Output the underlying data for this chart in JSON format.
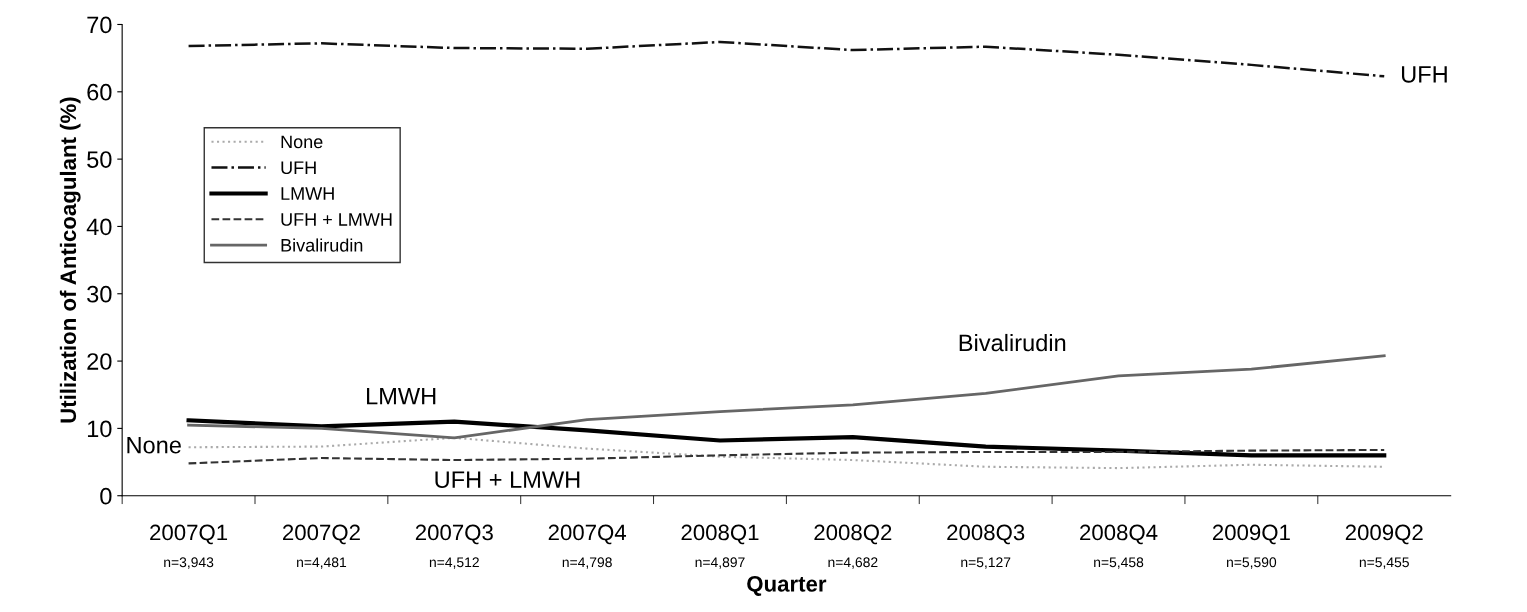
{
  "chart_data": {
    "type": "line",
    "xlabel": "Quarter",
    "ylabel": "Utilization of Anticoagulant (%)",
    "categories": [
      "2007Q1\nn=3,943",
      "2007Q2\nn=4,481",
      "2007Q3\nn=4,512",
      "2007Q4\nn=4,798",
      "2008Q1\nn=4,897",
      "2008Q2\nn=4,682",
      "2008Q3\nn=5,127",
      "2008Q4\nn=5,458",
      "2009Q1\nn=5,590",
      "2009Q2\nn=5,455"
    ],
    "series": [
      {
        "name": "None",
        "color": "#aaaaaa",
        "line_style": "dotted",
        "values": [
          7.2,
          7.3,
          8.6,
          7.0,
          5.8,
          5.3,
          4.3,
          4.1,
          4.6,
          4.3
        ]
      },
      {
        "name": "UFH",
        "color": "#111111",
        "line_style": "dashdot",
        "values": [
          66.8,
          67.2,
          66.5,
          66.4,
          67.4,
          66.2,
          66.7,
          65.5,
          64.0,
          62.3
        ]
      },
      {
        "name": "LMWH",
        "color": "#000000",
        "line_style": "solid",
        "values": [
          11.2,
          10.3,
          11.0,
          9.7,
          8.2,
          8.7,
          7.3,
          6.7,
          6.0,
          6.0
        ]
      },
      {
        "name": "UFH + LMWH",
        "color": "#333333",
        "line_style": "dashed",
        "values": [
          4.8,
          5.6,
          5.3,
          5.5,
          6.0,
          6.4,
          6.5,
          6.5,
          6.7,
          6.8
        ]
      },
      {
        "name": "Bivalirudin",
        "color": "#666666",
        "line_style": "solid",
        "values": [
          10.5,
          10.0,
          8.6,
          11.3,
          12.5,
          13.5,
          15.2,
          17.8,
          18.8,
          20.8
        ]
      }
    ],
    "annotations": [
      "UFH",
      "LMWH",
      "None",
      "UFH + LMWH",
      "Bivalirudin"
    ],
    "ylim": [
      0,
      70
    ],
    "yticks": [
      0,
      10,
      20,
      30,
      40,
      50,
      60,
      70
    ],
    "legend": "top left",
    "grid": false
  }
}
